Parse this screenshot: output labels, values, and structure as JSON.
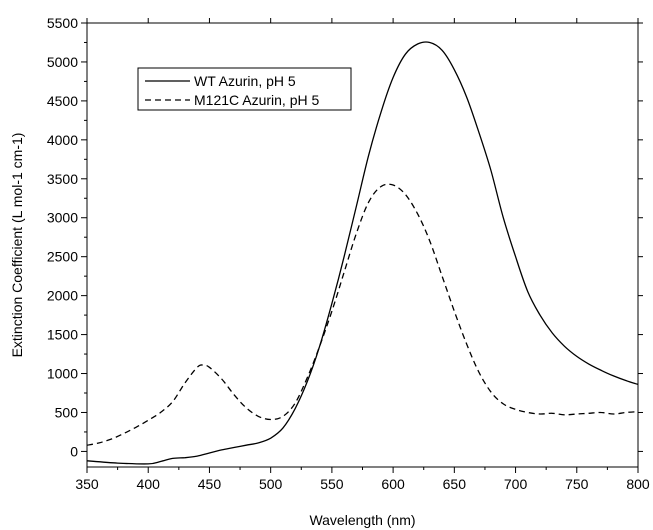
{
  "chart_data": {
    "type": "line",
    "xlabel": "Wavelength (nm)",
    "ylabel": "Extinction Coefficient (L mol-1 cm-1)",
    "xlim": [
      350,
      800
    ],
    "ylim": [
      -200,
      5500
    ],
    "x_ticks": [
      350,
      400,
      450,
      500,
      550,
      600,
      650,
      700,
      750,
      800
    ],
    "y_ticks": [
      0,
      500,
      1000,
      1500,
      2000,
      2500,
      3000,
      3500,
      4000,
      4500,
      5000,
      5500
    ],
    "grid": false,
    "legend_position": "top-left",
    "series": [
      {
        "name": "WT Azurin, pH 5",
        "style": "solid",
        "color": "#000000",
        "x": [
          350,
          375,
          400,
          410,
          420,
          430,
          440,
          450,
          460,
          470,
          480,
          490,
          500,
          510,
          520,
          530,
          540,
          550,
          560,
          570,
          580,
          590,
          600,
          610,
          620,
          630,
          640,
          650,
          660,
          670,
          680,
          690,
          700,
          710,
          720,
          730,
          740,
          750,
          760,
          770,
          780,
          790,
          800
        ],
        "y": [
          -120,
          -150,
          -160,
          -130,
          -90,
          -80,
          -60,
          -20,
          20,
          50,
          80,
          110,
          170,
          300,
          550,
          900,
          1350,
          1900,
          2500,
          3150,
          3800,
          4350,
          4800,
          5100,
          5230,
          5250,
          5150,
          4900,
          4550,
          4100,
          3600,
          3000,
          2500,
          2050,
          1750,
          1520,
          1350,
          1220,
          1120,
          1040,
          970,
          910,
          860
        ]
      },
      {
        "name": "M121C Azurin, pH 5",
        "style": "dashed",
        "color": "#000000",
        "x": [
          350,
          360,
          370,
          380,
          390,
          400,
          410,
          420,
          430,
          440,
          445,
          450,
          460,
          470,
          480,
          490,
          500,
          510,
          520,
          530,
          540,
          550,
          560,
          570,
          580,
          590,
          600,
          610,
          620,
          630,
          640,
          650,
          660,
          670,
          680,
          690,
          700,
          710,
          720,
          730,
          740,
          750,
          760,
          770,
          780,
          790,
          800
        ],
        "y": [
          80,
          110,
          160,
          230,
          310,
          400,
          500,
          640,
          880,
          1080,
          1110,
          1080,
          930,
          730,
          560,
          450,
          410,
          450,
          620,
          950,
          1350,
          1800,
          2300,
          2800,
          3200,
          3400,
          3420,
          3300,
          3050,
          2700,
          2250,
          1800,
          1380,
          1020,
          760,
          610,
          540,
          500,
          480,
          490,
          470,
          480,
          490,
          500,
          480,
          500,
          510
        ]
      }
    ]
  }
}
